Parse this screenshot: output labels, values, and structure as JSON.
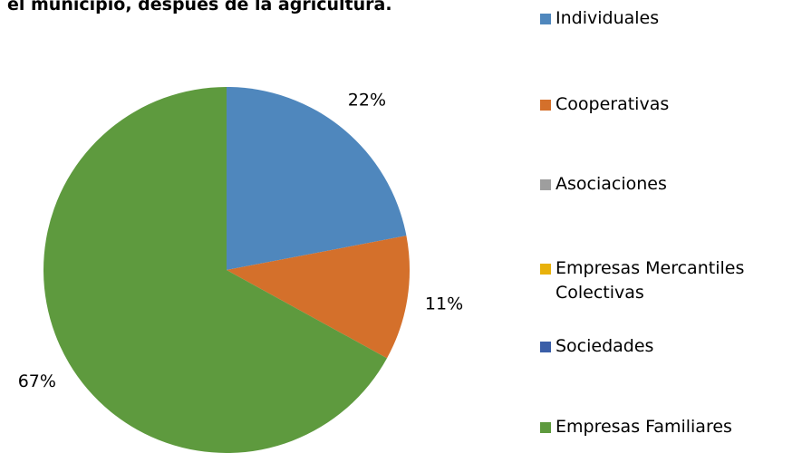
{
  "chart_data": {
    "type": "pie",
    "title": "el municipio, después de la agricultura.",
    "categories": [
      "Individuales",
      "Cooperativas",
      "Asociaciones",
      "Empresas Mercantiles Colectivas",
      "Sociedades",
      "Empresas Familiares"
    ],
    "values": [
      22,
      11,
      0,
      0,
      0,
      67
    ],
    "value_labels": [
      "22%",
      "11%",
      null,
      null,
      null,
      "67%"
    ],
    "colors": [
      "#4f87bd",
      "#d4702b",
      "#9e9e9e",
      "#e8b10b",
      "#3a5ea8",
      "#5e9a3e"
    ],
    "legend": "right"
  }
}
